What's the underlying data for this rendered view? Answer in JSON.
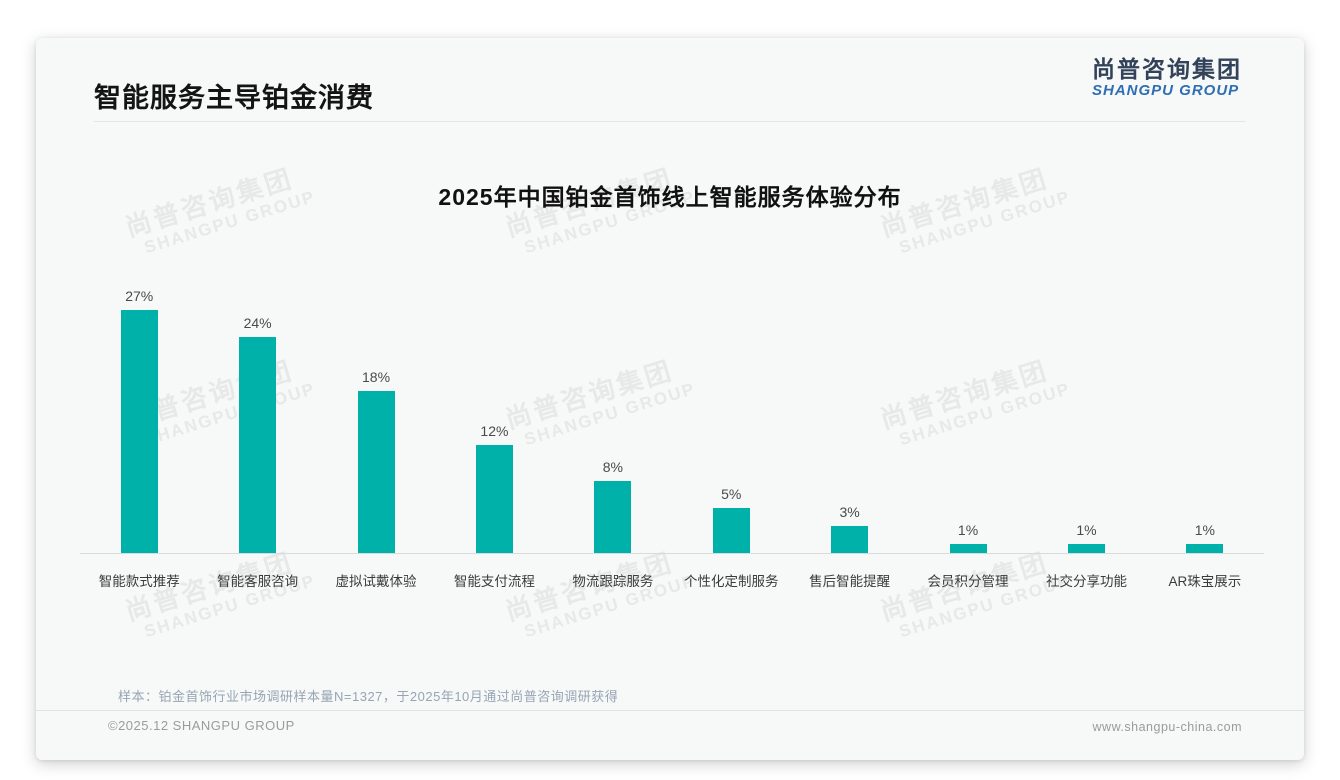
{
  "header": {
    "title": "智能服务主导铂金消费"
  },
  "logo": {
    "cn": "尚普咨询集团",
    "en": "SHANGPU GROUP"
  },
  "watermark": {
    "line1": "尚普咨询集团",
    "line2": "SHANGPU GROUP"
  },
  "chart_data": {
    "type": "bar",
    "title": "2025年中国铂金首饰线上智能服务体验分布",
    "categories": [
      "智能款式推荐",
      "智能客服咨询",
      "虚拟试戴体验",
      "智能支付流程",
      "物流跟踪服务",
      "个性化定制服务",
      "售后智能提醒",
      "会员积分管理",
      "社交分享功能",
      "AR珠宝展示"
    ],
    "values": [
      27,
      24,
      18,
      12,
      8,
      5,
      3,
      1,
      1,
      1
    ],
    "unit": "%",
    "value_labels": true,
    "bar_color": "#00b1aa",
    "value_label_color": "#4a4a4a",
    "xlabel": "",
    "ylabel": "",
    "ylim": [
      0,
      30
    ],
    "grid": false,
    "legend": null,
    "orientation": "vertical"
  },
  "note": "样本：铂金首饰行业市场调研样本量N=1327，于2025年10月通过尚普咨询调研获得",
  "footer": {
    "left": "©2025.12 SHANGPU GROUP",
    "right": "www.shangpu-china.com"
  }
}
